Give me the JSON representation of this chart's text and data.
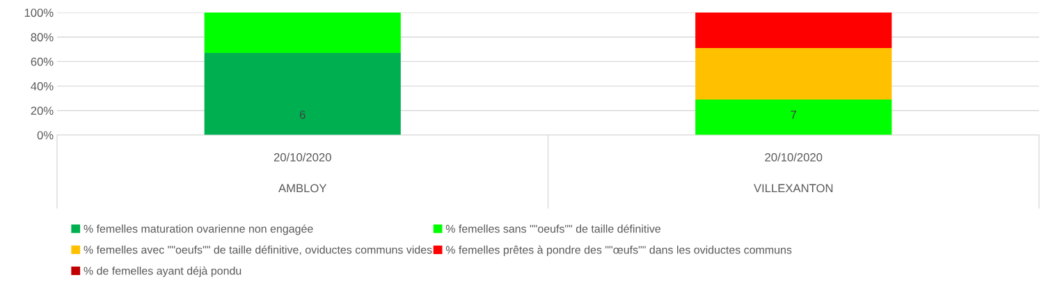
{
  "chart_data": {
    "type": "bar",
    "stacked": true,
    "categories": [
      "20/10/2020\nAMBLOY",
      "20/10/2020\nVILLEXANTON"
    ],
    "series": [
      {
        "name": "% femelles maturation ovarienne non engagée",
        "color": "#00b050",
        "values": [
          67,
          0
        ]
      },
      {
        "name": "% femelles sans \"\"oeufs\"\" de taille définitive",
        "color": "#00ff00",
        "values": [
          33,
          29
        ]
      },
      {
        "name": "% femelles avec \"\"oeufs\"\" de taille définitive, oviductes communs vides",
        "color": "#ffc000",
        "values": [
          0,
          42
        ]
      },
      {
        "name": "% femelles prêtes à pondre des \"\"œufs\"\" dans les oviductes communs",
        "color": "#ff0000",
        "values": [
          0,
          29
        ]
      },
      {
        "name": "% de femelles ayant déjà pondu",
        "color": "#c00000",
        "values": [
          0,
          0
        ]
      }
    ],
    "ylim": [
      0,
      100
    ],
    "yticks": [
      {
        "value": 0,
        "label": "0%"
      },
      {
        "value": 20,
        "label": "20%"
      },
      {
        "value": 40,
        "label": "40%"
      },
      {
        "value": 60,
        "label": "60%"
      },
      {
        "value": 80,
        "label": "80%"
      },
      {
        "value": 100,
        "label": "100%"
      }
    ],
    "annotations": [
      "6",
      "7"
    ],
    "grid": "y",
    "legend": "bottom"
  }
}
